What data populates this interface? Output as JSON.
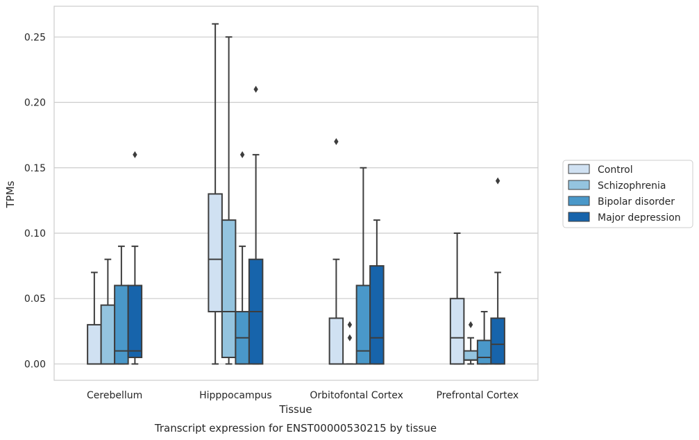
{
  "chart_data": {
    "type": "boxplot",
    "caption": "Transcript expression for ENST00000530215 by tissue",
    "xlabel": "Tissue",
    "ylabel": "TPMs",
    "ylim": [
      -0.0125,
      0.2735
    ],
    "yticks": [
      0.0,
      0.05,
      0.1,
      0.15,
      0.2,
      0.25
    ],
    "ytick_labels": [
      "0.00",
      "0.05",
      "0.10",
      "0.15",
      "0.20",
      "0.25"
    ],
    "grid": "horizontal",
    "legend_position": "right",
    "categories": [
      "Cerebellum",
      "Hipppocampus",
      "Orbitofontal Cortex",
      "Prefrontal Cortex"
    ],
    "series": [
      {
        "name": "Control",
        "color": "#d0e1f2",
        "boxes": [
          {
            "whislo": 0.0,
            "q1": 0.0,
            "med": 0.0,
            "q3": 0.03,
            "whishi": 0.07,
            "fliers": []
          },
          {
            "whislo": 0.0,
            "q1": 0.04,
            "med": 0.08,
            "q3": 0.13,
            "whishi": 0.26,
            "fliers": []
          },
          {
            "whislo": 0.0,
            "q1": 0.0,
            "med": 0.0,
            "q3": 0.035,
            "whishi": 0.08,
            "fliers": [
              0.17
            ]
          },
          {
            "whislo": 0.0,
            "q1": 0.0,
            "med": 0.02,
            "q3": 0.05,
            "whishi": 0.1,
            "fliers": []
          }
        ]
      },
      {
        "name": "Schizophrenia",
        "color": "#94c4df",
        "boxes": [
          {
            "whislo": 0.0,
            "q1": 0.0,
            "med": 0.0,
            "q3": 0.045,
            "whishi": 0.08,
            "fliers": []
          },
          {
            "whislo": 0.0,
            "q1": 0.005,
            "med": 0.04,
            "q3": 0.11,
            "whishi": 0.25,
            "fliers": []
          },
          {
            "whislo": 0.0,
            "q1": 0.0,
            "med": 0.0,
            "q3": 0.0,
            "whishi": 0.0,
            "fliers": [
              0.02,
              0.03
            ]
          },
          {
            "whislo": 0.0,
            "q1": 0.003,
            "med": 0.003,
            "q3": 0.01,
            "whishi": 0.02,
            "fliers": [
              0.03
            ]
          }
        ]
      },
      {
        "name": "Bipolar disorder",
        "color": "#4a98c9",
        "boxes": [
          {
            "whislo": 0.0,
            "q1": 0.0,
            "med": 0.01,
            "q3": 0.06,
            "whishi": 0.09,
            "fliers": []
          },
          {
            "whislo": 0.0,
            "q1": 0.0,
            "med": 0.02,
            "q3": 0.04,
            "whishi": 0.09,
            "fliers": [
              0.16
            ]
          },
          {
            "whislo": 0.0,
            "q1": 0.0,
            "med": 0.01,
            "q3": 0.06,
            "whishi": 0.15,
            "fliers": []
          },
          {
            "whislo": 0.0,
            "q1": 0.0,
            "med": 0.005,
            "q3": 0.018,
            "whishi": 0.04,
            "fliers": []
          }
        ]
      },
      {
        "name": "Major depression",
        "color": "#1764ab",
        "boxes": [
          {
            "whislo": 0.0,
            "q1": 0.005,
            "med": 0.01,
            "q3": 0.06,
            "whishi": 0.09,
            "fliers": [
              0.16
            ]
          },
          {
            "whislo": 0.0,
            "q1": 0.0,
            "med": 0.04,
            "q3": 0.08,
            "whishi": 0.16,
            "fliers": [
              0.21
            ]
          },
          {
            "whislo": 0.0,
            "q1": 0.0,
            "med": 0.02,
            "q3": 0.075,
            "whishi": 0.11,
            "fliers": []
          },
          {
            "whislo": 0.0,
            "q1": 0.0,
            "med": 0.015,
            "q3": 0.035,
            "whishi": 0.07,
            "fliers": [
              0.14
            ]
          }
        ]
      }
    ]
  }
}
